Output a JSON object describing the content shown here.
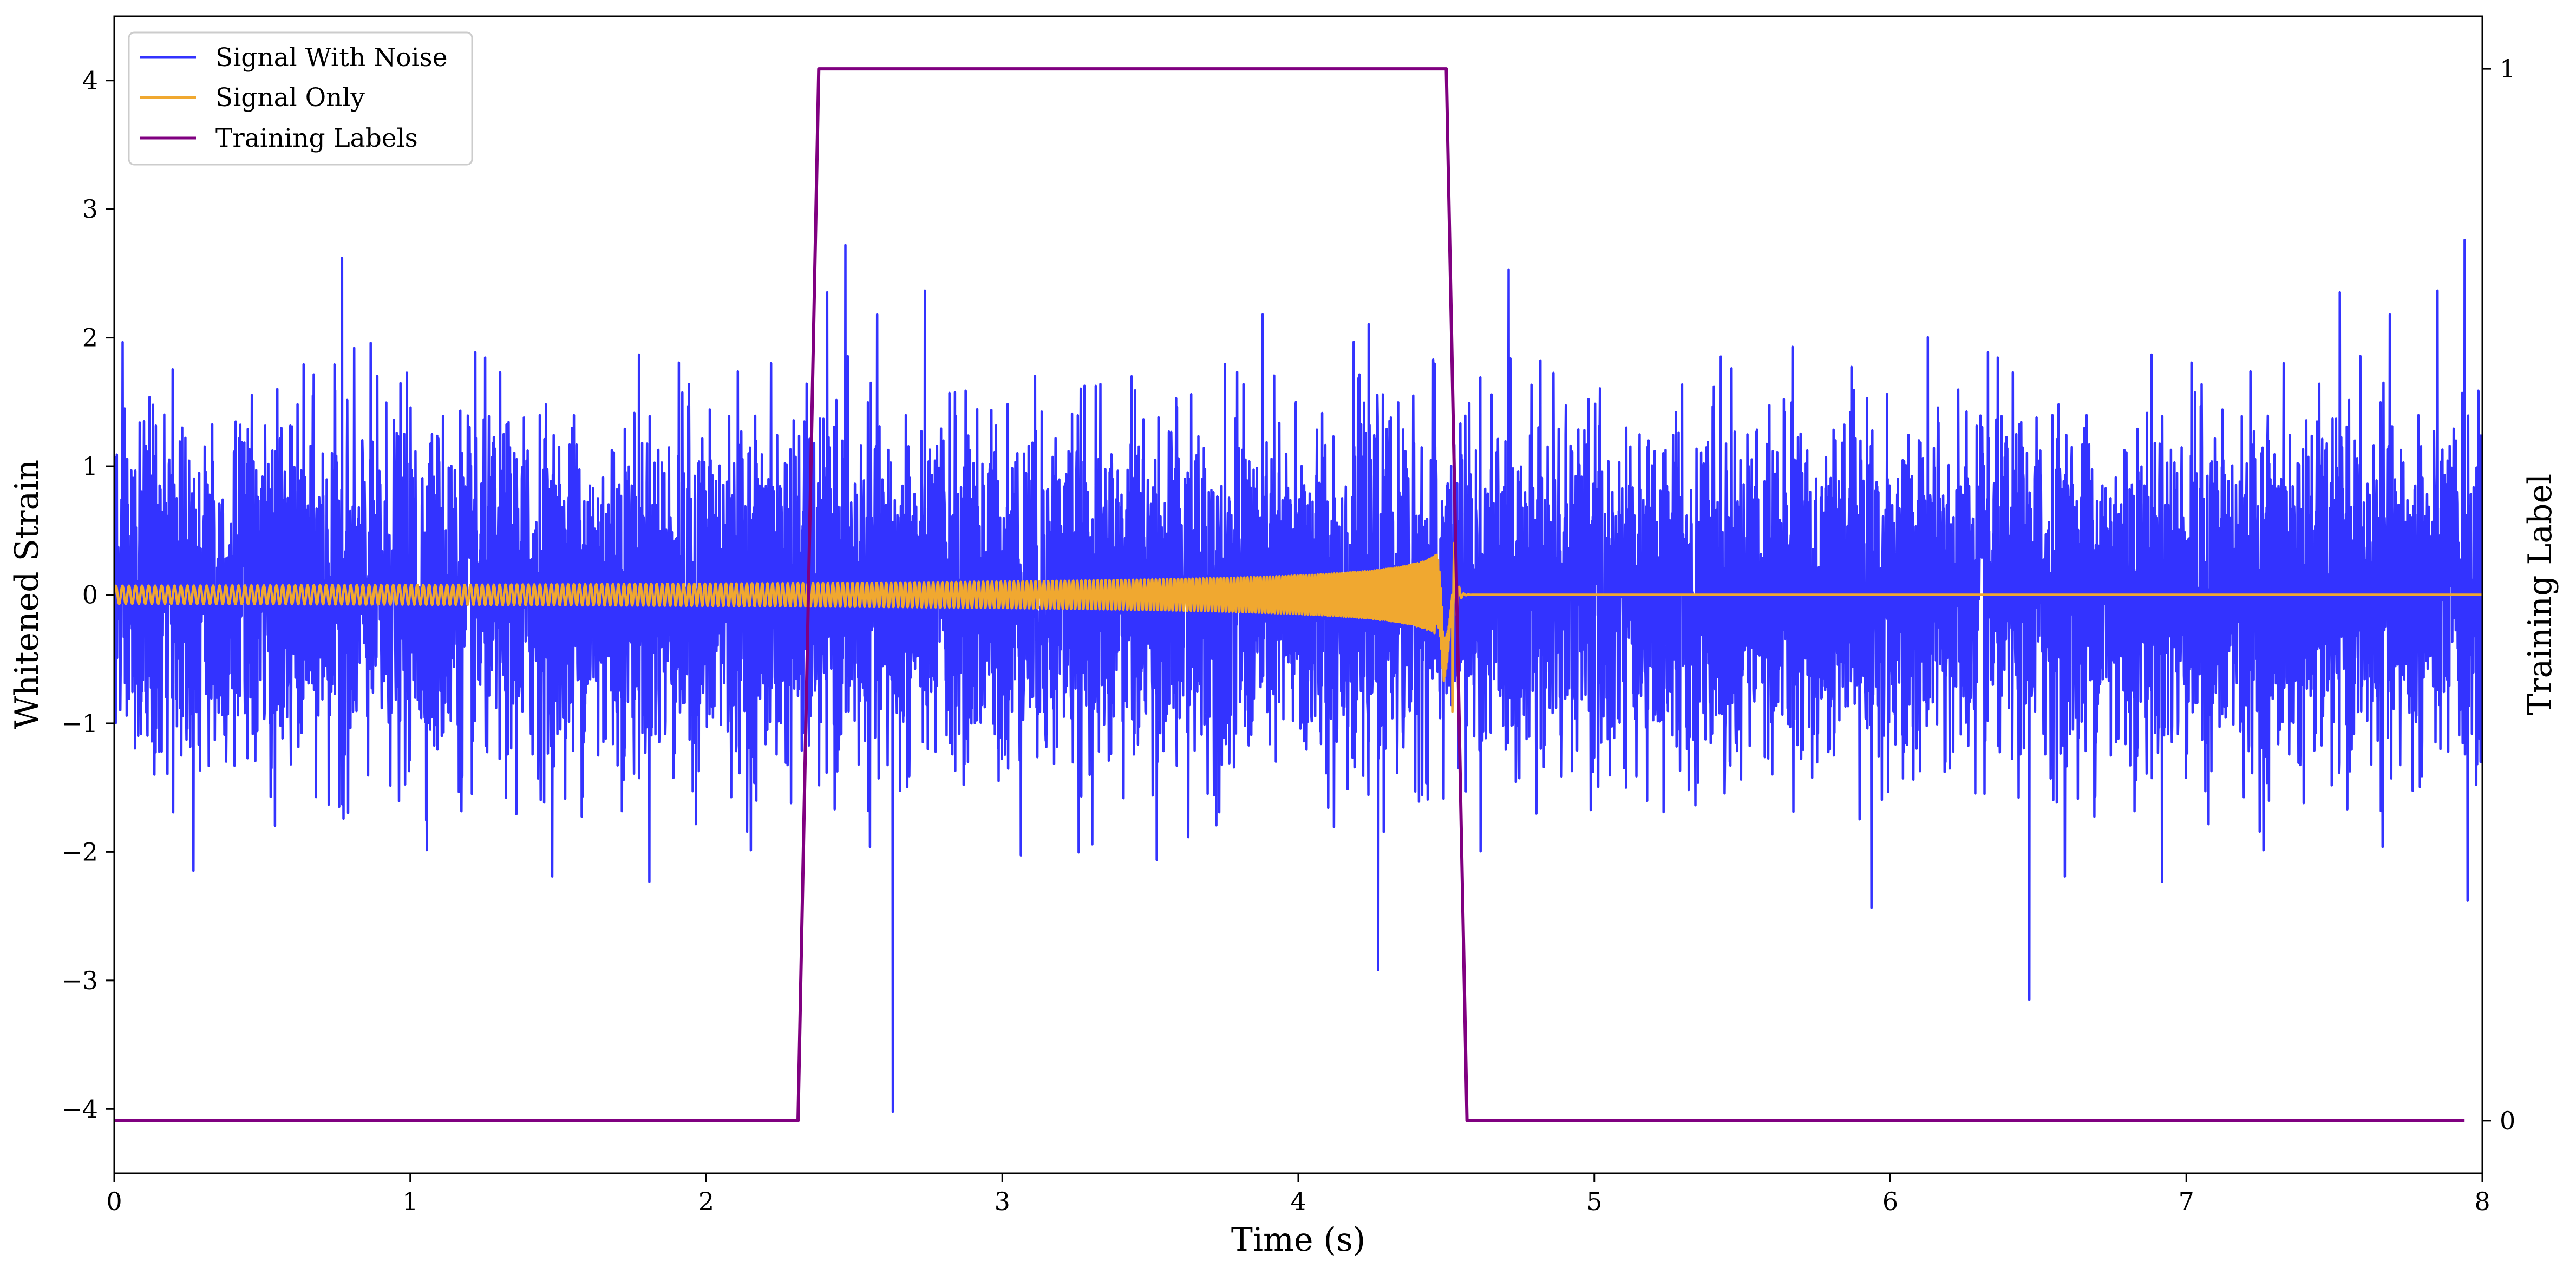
{
  "chart_data": {
    "type": "line",
    "xlabel": "Time (s)",
    "ylabel": "Whitened Strain",
    "y2label": "Training Label",
    "xlim": [
      0,
      8
    ],
    "ylim": [
      -4.5,
      4.5
    ],
    "y2lim": [
      -0.05,
      1.05
    ],
    "x_ticks": [
      0,
      1,
      2,
      3,
      4,
      5,
      6,
      7,
      8
    ],
    "x_tick_labels": [
      "0",
      "1",
      "2",
      "3",
      "4",
      "5",
      "6",
      "7",
      "8"
    ],
    "y_ticks": [
      -4,
      -3,
      -2,
      -1,
      0,
      1,
      2,
      3,
      4
    ],
    "y_tick_labels": [
      "−4",
      "−3",
      "−2",
      "−1",
      "0",
      "1",
      "2",
      "3",
      "4"
    ],
    "y2_ticks": [
      0,
      1
    ],
    "y2_tick_labels": [
      "0",
      "1"
    ],
    "grid": false,
    "legend_position": "top-left",
    "series": [
      {
        "name": "Signal With Noise",
        "color": "#3333ff",
        "axis": "left",
        "kind": "noise",
        "sample_rate_hz": 1024,
        "duration_s": 8,
        "sigma": 0.66,
        "typical_peak_range": [
          -2.6,
          2.7
        ],
        "extreme_points": [
          [
            0.77,
            2.62
          ],
          [
            2.47,
            2.72
          ],
          [
            2.63,
            -4.02
          ],
          [
            4.27,
            -2.92
          ],
          [
            6.47,
            -3.15
          ],
          [
            7.94,
            2.76
          ],
          [
            7.95,
            -2.38
          ]
        ]
      },
      {
        "name": "Signal Only",
        "color": "#f0a830",
        "axis": "left",
        "kind": "chirp",
        "start_s": 0,
        "merger_s": 4.52,
        "initial_amplitude": 0.07,
        "peak_amplitude": 0.8,
        "trough_amplitude": -1.0,
        "initial_frequency_hz": 45,
        "post_merger_value": 0
      },
      {
        "name": "Training Labels",
        "color": "#800080",
        "axis": "right",
        "x": [
          0,
          2.31,
          2.38,
          4.5,
          4.57,
          7.94
        ],
        "y": [
          0,
          0,
          1,
          1,
          0,
          0
        ]
      }
    ]
  }
}
